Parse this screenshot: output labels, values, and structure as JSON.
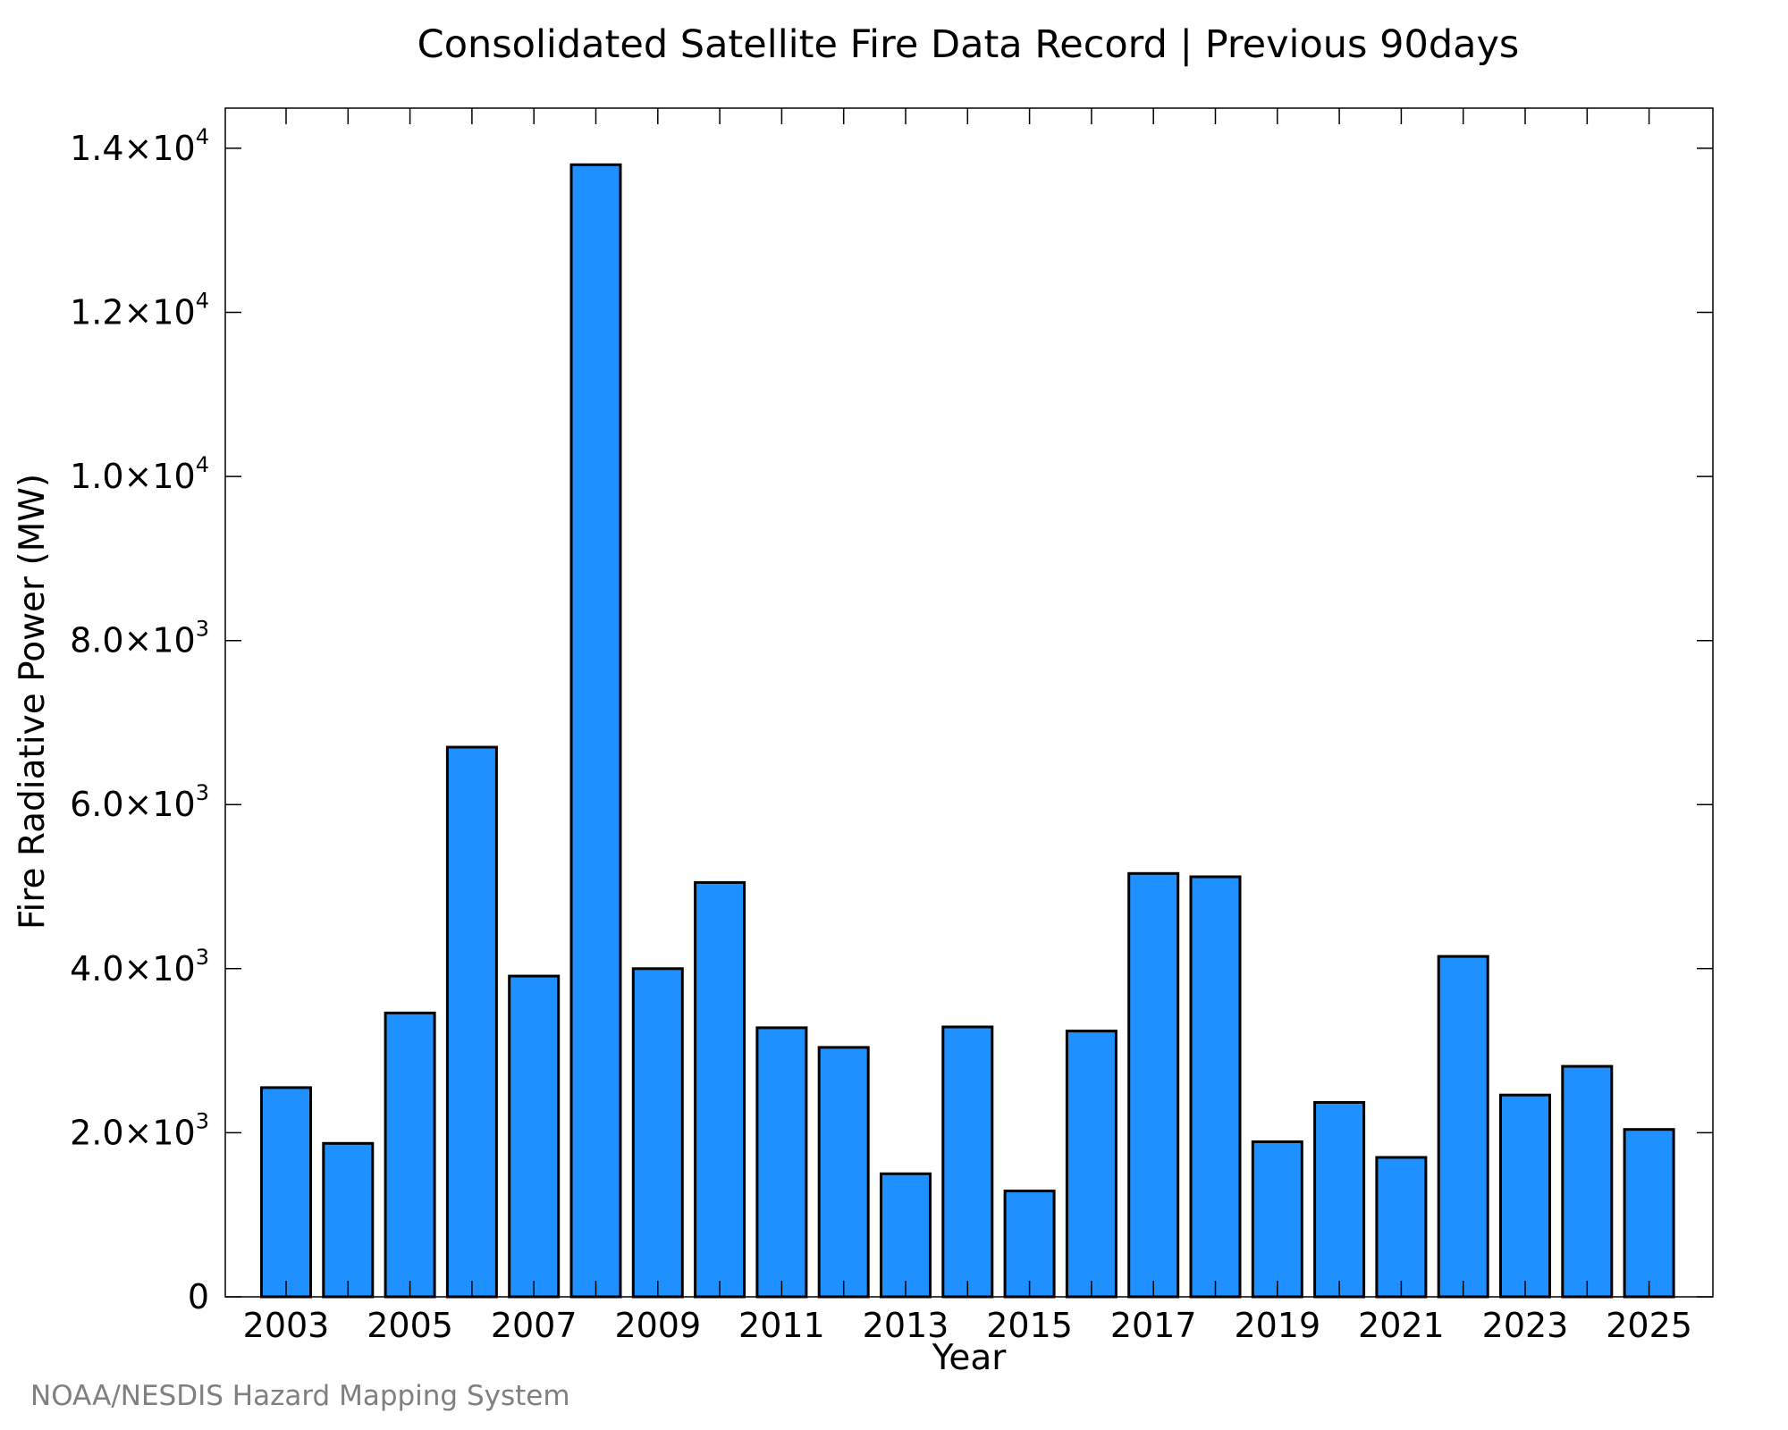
{
  "chart_data": {
    "type": "bar",
    "title": "Consolidated Satellite Fire Data Record | Previous 90days",
    "xlabel": "Year",
    "ylabel": "Fire Radiative Power (MW)",
    "categories": [
      "2003",
      "2004",
      "2005",
      "2006",
      "2007",
      "2008",
      "2009",
      "2010",
      "2011",
      "2012",
      "2013",
      "2014",
      "2015",
      "2016",
      "2017",
      "2018",
      "2019",
      "2020",
      "2021",
      "2022",
      "2023",
      "2024",
      "2025"
    ],
    "values": [
      2550,
      1870,
      3460,
      6700,
      3910,
      13800,
      4000,
      5050,
      3280,
      3040,
      1500,
      3290,
      1290,
      3240,
      5160,
      5120,
      1890,
      2370,
      1700,
      4150,
      2460,
      2810,
      2040
    ],
    "x_tick_labels": [
      "2003",
      "2005",
      "2007",
      "2009",
      "2011",
      "2013",
      "2015",
      "2017",
      "2019",
      "2021",
      "2023",
      "2025"
    ],
    "y_ticks": [
      {
        "value": 0,
        "mantissa": "0",
        "exponent": ""
      },
      {
        "value": 2000,
        "mantissa": "2.0×10",
        "exponent": "3"
      },
      {
        "value": 4000,
        "mantissa": "4.0×10",
        "exponent": "3"
      },
      {
        "value": 6000,
        "mantissa": "6.0×10",
        "exponent": "3"
      },
      {
        "value": 8000,
        "mantissa": "8.0×10",
        "exponent": "3"
      },
      {
        "value": 10000,
        "mantissa": "1.0×10",
        "exponent": "4"
      },
      {
        "value": 12000,
        "mantissa": "1.2×10",
        "exponent": "4"
      },
      {
        "value": 14000,
        "mantissa": "1.4×10",
        "exponent": "4"
      }
    ],
    "xlim": [
      2002.2,
      2025.8
    ],
    "ylim": [
      0,
      14500
    ],
    "bar_color": "#1E90FF",
    "bar_edge_color": "#000000",
    "grid": false,
    "legend": "none"
  },
  "credit": "NOAA/NESDIS Hazard Mapping System"
}
